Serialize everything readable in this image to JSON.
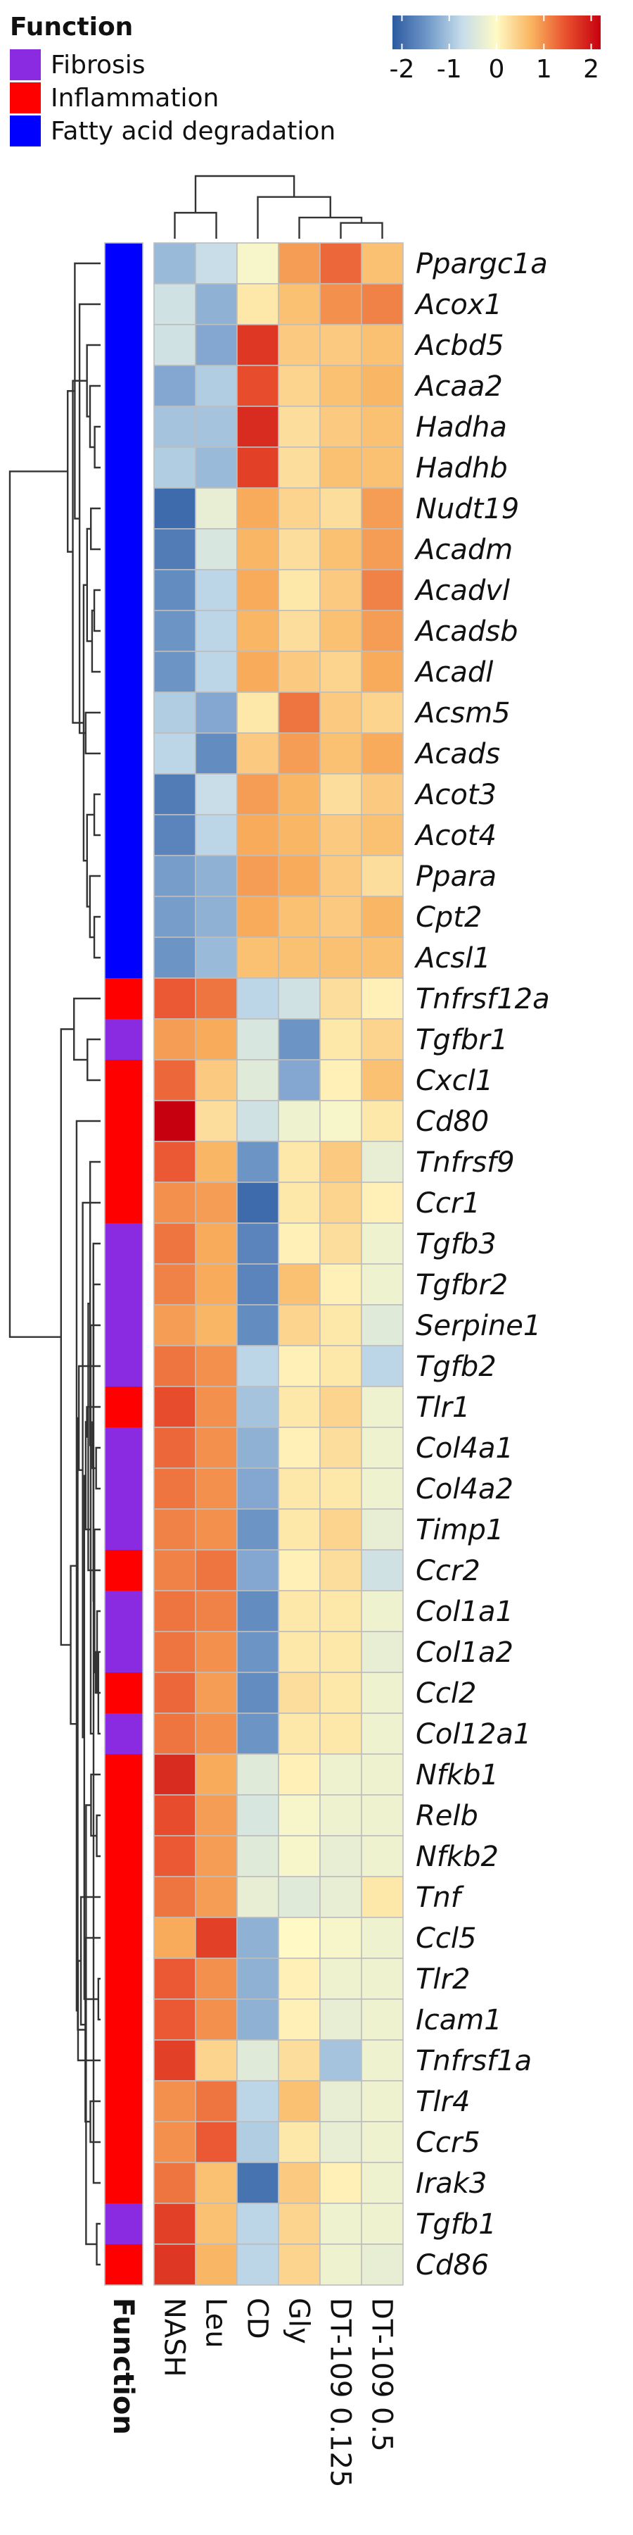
{
  "chart_data": {
    "type": "heatmap",
    "legend": {
      "title": "Function",
      "items": [
        {
          "label": "Fibrosis",
          "color": "#8a2be2"
        },
        {
          "label": "Inflammation",
          "color": "#ff0000"
        },
        {
          "label": "Fatty acid degradation",
          "color": "#0000ff"
        }
      ]
    },
    "colorbar": {
      "range": [
        -2.2,
        2.2
      ],
      "ticks": [
        {
          "value": -2,
          "label": "-2"
        },
        {
          "value": -1,
          "label": "-1"
        },
        {
          "value": 0,
          "label": "0"
        },
        {
          "value": 1,
          "label": "1"
        },
        {
          "value": 2,
          "label": "2"
        }
      ],
      "colors": [
        "#2c5aa0",
        "#6f98c8",
        "#c5dcea",
        "#fffac5",
        "#f9b460",
        "#e8502e",
        "#c7000f"
      ]
    },
    "annotation_label": "Function",
    "columns": [
      "NASH",
      "Leu",
      "CD",
      "Gly",
      "DT-109 0.125",
      "DT-109 0.5"
    ],
    "rows": [
      {
        "gene": "Ppargc1a",
        "function": "Fatty acid degradation",
        "values": [
          -1.1,
          -0.7,
          -0.1,
          0.9,
          1.3,
          0.6
        ]
      },
      {
        "gene": "Acox1",
        "function": "Fatty acid degradation",
        "values": [
          -0.6,
          -1.2,
          0.2,
          0.6,
          1.0,
          1.1
        ]
      },
      {
        "gene": "Acbd5",
        "function": "Fatty acid degradation",
        "values": [
          -0.6,
          -1.3,
          1.7,
          0.5,
          0.5,
          0.6
        ]
      },
      {
        "gene": "Acaa2",
        "function": "Fatty acid degradation",
        "values": [
          -1.3,
          -0.9,
          1.5,
          0.4,
          0.6,
          0.7
        ]
      },
      {
        "gene": "Hadha",
        "function": "Fatty acid degradation",
        "values": [
          -1.0,
          -1.0,
          1.8,
          0.3,
          0.5,
          0.6
        ]
      },
      {
        "gene": "Hadhb",
        "function": "Fatty acid degradation",
        "values": [
          -0.9,
          -1.1,
          1.6,
          0.3,
          0.6,
          0.6
        ]
      },
      {
        "gene": "Nudt19",
        "function": "Fatty acid degradation",
        "values": [
          -2.0,
          -0.3,
          0.8,
          0.4,
          0.3,
          0.9
        ]
      },
      {
        "gene": "Acadm",
        "function": "Fatty acid degradation",
        "values": [
          -1.8,
          -0.5,
          0.7,
          0.3,
          0.6,
          0.9
        ]
      },
      {
        "gene": "Acadvl",
        "function": "Fatty acid degradation",
        "values": [
          -1.6,
          -0.8,
          0.8,
          0.2,
          0.5,
          1.1
        ]
      },
      {
        "gene": "Acadsb",
        "function": "Fatty acid degradation",
        "values": [
          -1.5,
          -0.8,
          0.7,
          0.3,
          0.6,
          0.9
        ]
      },
      {
        "gene": "Acadl",
        "function": "Fatty acid degradation",
        "values": [
          -1.5,
          -0.8,
          0.8,
          0.5,
          0.4,
          0.8
        ]
      },
      {
        "gene": "Acsm5",
        "function": "Fatty acid degradation",
        "values": [
          -0.9,
          -1.3,
          0.2,
          1.2,
          0.5,
          0.4
        ]
      },
      {
        "gene": "Acads",
        "function": "Fatty acid degradation",
        "values": [
          -0.8,
          -1.6,
          0.5,
          0.9,
          0.6,
          0.8
        ]
      },
      {
        "gene": "Acot3",
        "function": "Fatty acid degradation",
        "values": [
          -1.8,
          -0.7,
          0.9,
          0.7,
          0.3,
          0.5
        ]
      },
      {
        "gene": "Acot4",
        "function": "Fatty acid degradation",
        "values": [
          -1.7,
          -0.8,
          0.8,
          0.7,
          0.5,
          0.6
        ]
      },
      {
        "gene": "Ppara",
        "function": "Fatty acid degradation",
        "values": [
          -1.4,
          -1.2,
          0.9,
          0.8,
          0.5,
          0.3
        ]
      },
      {
        "gene": "Cpt2",
        "function": "Fatty acid degradation",
        "values": [
          -1.4,
          -1.2,
          0.8,
          0.6,
          0.5,
          0.7
        ]
      },
      {
        "gene": "Acsl1",
        "function": "Fatty acid degradation",
        "values": [
          -1.5,
          -1.1,
          0.6,
          0.6,
          0.6,
          0.6
        ]
      },
      {
        "gene": "Tnfrsf12a",
        "function": "Inflammation",
        "values": [
          1.4,
          1.2,
          -0.8,
          -0.6,
          0.3,
          0.1
        ]
      },
      {
        "gene": "Tgfbr1",
        "function": "Fibrosis",
        "values": [
          0.9,
          0.8,
          -0.5,
          -1.5,
          0.2,
          0.4
        ]
      },
      {
        "gene": "Cxcl1",
        "function": "Inflammation",
        "values": [
          1.3,
          0.5,
          -0.4,
          -1.3,
          0.1,
          0.6
        ]
      },
      {
        "gene": "Cd80",
        "function": "Inflammation",
        "values": [
          2.2,
          0.3,
          -0.6,
          -0.2,
          -0.1,
          0.2
        ]
      },
      {
        "gene": "Tnfrsf9",
        "function": "Inflammation",
        "values": [
          1.4,
          0.7,
          -1.5,
          0.2,
          0.5,
          -0.3
        ]
      },
      {
        "gene": "Ccr1",
        "function": "Inflammation",
        "values": [
          1.0,
          0.9,
          -2.0,
          0.2,
          0.4,
          0.1
        ]
      },
      {
        "gene": "Tgfb3",
        "function": "Fibrosis",
        "values": [
          1.2,
          0.8,
          -1.7,
          0.1,
          0.3,
          -0.2
        ]
      },
      {
        "gene": "Tgfbr2",
        "function": "Fibrosis",
        "values": [
          1.1,
          0.8,
          -1.7,
          0.6,
          0.1,
          -0.2
        ]
      },
      {
        "gene": "Serpine1",
        "function": "Fibrosis",
        "values": [
          0.9,
          0.7,
          -1.6,
          0.4,
          0.2,
          -0.4
        ]
      },
      {
        "gene": "Tgfb2",
        "function": "Fibrosis",
        "values": [
          1.2,
          1.0,
          -0.8,
          0.1,
          0.2,
          -0.8
        ]
      },
      {
        "gene": "Tlr1",
        "function": "Inflammation",
        "values": [
          1.5,
          1.0,
          -1.0,
          0.2,
          0.4,
          -0.2
        ]
      },
      {
        "gene": "Col4a1",
        "function": "Fibrosis",
        "values": [
          1.3,
          1.0,
          -1.2,
          0.1,
          0.3,
          -0.2
        ]
      },
      {
        "gene": "Col4a2",
        "function": "Fibrosis",
        "values": [
          1.2,
          1.0,
          -1.3,
          0.2,
          0.2,
          -0.2
        ]
      },
      {
        "gene": "Timp1",
        "function": "Fibrosis",
        "values": [
          1.1,
          1.0,
          -1.5,
          0.2,
          0.4,
          -0.3
        ]
      },
      {
        "gene": "Ccr2",
        "function": "Inflammation",
        "values": [
          1.1,
          1.2,
          -1.3,
          0.1,
          0.3,
          -0.6
        ]
      },
      {
        "gene": "Col1a1",
        "function": "Fibrosis",
        "values": [
          1.2,
          1.1,
          -1.6,
          0.2,
          0.2,
          -0.2
        ]
      },
      {
        "gene": "Col1a2",
        "function": "Fibrosis",
        "values": [
          1.2,
          1.0,
          -1.5,
          0.2,
          0.2,
          -0.3
        ]
      },
      {
        "gene": "Ccl2",
        "function": "Inflammation",
        "values": [
          1.3,
          0.9,
          -1.6,
          0.3,
          0.2,
          -0.2
        ]
      },
      {
        "gene": "Col12a1",
        "function": "Fibrosis",
        "values": [
          1.2,
          1.0,
          -1.5,
          0.2,
          0.2,
          -0.2
        ]
      },
      {
        "gene": "Nfkb1",
        "function": "Inflammation",
        "values": [
          1.8,
          0.8,
          -0.4,
          0.1,
          -0.2,
          -0.2
        ]
      },
      {
        "gene": "Relb",
        "function": "Inflammation",
        "values": [
          1.5,
          0.9,
          -0.5,
          -0.1,
          -0.2,
          -0.2
        ]
      },
      {
        "gene": "Nfkb2",
        "function": "Inflammation",
        "values": [
          1.4,
          0.9,
          -0.4,
          -0.1,
          -0.3,
          -0.2
        ]
      },
      {
        "gene": "Tnf",
        "function": "Inflammation",
        "values": [
          1.2,
          0.9,
          -0.3,
          -0.4,
          -0.3,
          0.2
        ]
      },
      {
        "gene": "Ccl5",
        "function": "Inflammation",
        "values": [
          0.8,
          1.6,
          -1.2,
          0.0,
          -0.1,
          -0.2
        ]
      },
      {
        "gene": "Tlr2",
        "function": "Inflammation",
        "values": [
          1.4,
          1.0,
          -1.2,
          0.1,
          -0.2,
          -0.2
        ]
      },
      {
        "gene": "Icam1",
        "function": "Inflammation",
        "values": [
          1.4,
          1.0,
          -1.2,
          0.1,
          -0.3,
          -0.2
        ]
      },
      {
        "gene": "Tnfrsf1a",
        "function": "Inflammation",
        "values": [
          1.6,
          0.4,
          -0.4,
          0.3,
          -1.0,
          -0.2
        ]
      },
      {
        "gene": "Tlr4",
        "function": "Inflammation",
        "values": [
          1.0,
          1.2,
          -0.8,
          0.6,
          -0.3,
          -0.2
        ]
      },
      {
        "gene": "Ccr5",
        "function": "Inflammation",
        "values": [
          1.0,
          1.4,
          -0.9,
          0.2,
          -0.3,
          -0.2
        ]
      },
      {
        "gene": "Irak3",
        "function": "Inflammation",
        "values": [
          1.2,
          0.6,
          -1.9,
          0.5,
          0.1,
          -0.2
        ]
      },
      {
        "gene": "Tgfb1",
        "function": "Fibrosis",
        "values": [
          1.6,
          0.6,
          -0.8,
          0.4,
          -0.2,
          -0.2
        ]
      },
      {
        "gene": "Cd86",
        "function": "Inflammation",
        "values": [
          1.7,
          0.7,
          -0.8,
          0.4,
          -0.2,
          -0.3
        ]
      }
    ]
  }
}
